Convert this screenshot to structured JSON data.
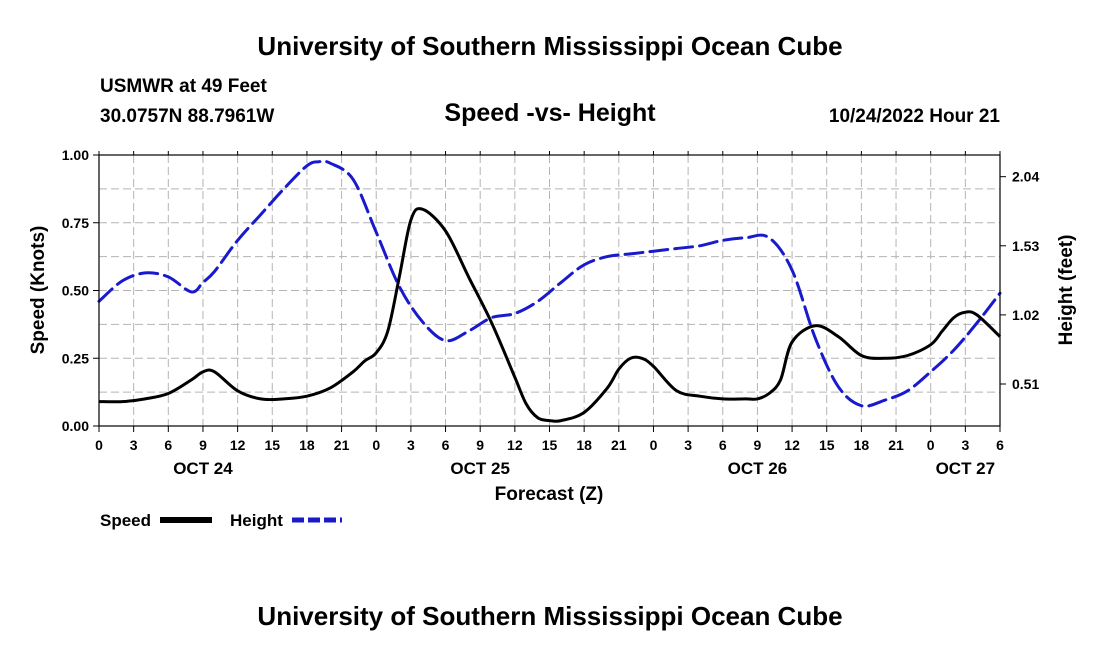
{
  "header": {
    "title": "University of Southern Mississippi Ocean Cube",
    "station": "USMWR at 49 Feet",
    "coords": "30.0757N  88.7961W",
    "datetime": "10/24/2022 Hour 21",
    "footer_title": "University of Southern Mississippi Ocean Cube"
  },
  "colors": {
    "speed": "#000000",
    "height": "#1a1acd",
    "grid": "#b4b4b4"
  },
  "chart_data": {
    "type": "line",
    "title": "Speed -vs- Height",
    "xlabel": "Forecast (Z)",
    "ylabel": "Speed (Knots)",
    "y2label": "Height (feet)",
    "x_unit": "hours from 00Z Oct 24",
    "xlim": [
      0,
      78
    ],
    "ylim": [
      0,
      1.0
    ],
    "y2lim": [
      0.2,
      2.2
    ],
    "x_tick_labels": [
      "0",
      "3",
      "6",
      "9",
      "12",
      "15",
      "18",
      "21",
      "0",
      "3",
      "6",
      "9",
      "12",
      "15",
      "18",
      "21",
      "0",
      "3",
      "6",
      "9",
      "12",
      "15",
      "18",
      "21",
      "0",
      "3",
      "6"
    ],
    "x_day_labels": [
      {
        "label": "OCT 24",
        "x": 9
      },
      {
        "label": "OCT 25",
        "x": 33
      },
      {
        "label": "OCT 26",
        "x": 57
      },
      {
        "label": "OCT 27",
        "x": 75
      }
    ],
    "y_ticks": [
      "0.00",
      "0.25",
      "0.50",
      "0.75",
      "1.00"
    ],
    "y2_ticks": [
      "0.51",
      "1.02",
      "1.53",
      "2.04"
    ],
    "legend": [
      {
        "label": "Speed",
        "style": "solid"
      },
      {
        "label": "Height",
        "style": "dashed"
      }
    ],
    "series": [
      {
        "name": "Speed",
        "axis": "left",
        "x": [
          0,
          2,
          4,
          6,
          8,
          9,
          10,
          12,
          14,
          16,
          18,
          20,
          22,
          23,
          24,
          25,
          26,
          27,
          28,
          30,
          32,
          34,
          36,
          37,
          38,
          39,
          40,
          42,
          44,
          45,
          46,
          47,
          48,
          50,
          52,
          54,
          56,
          57,
          58,
          59,
          60,
          62,
          64,
          66,
          68,
          70,
          72,
          73,
          74,
          75,
          76,
          78
        ],
        "y": [
          0.09,
          0.09,
          0.1,
          0.12,
          0.17,
          0.2,
          0.2,
          0.13,
          0.1,
          0.1,
          0.11,
          0.14,
          0.2,
          0.24,
          0.27,
          0.35,
          0.55,
          0.76,
          0.8,
          0.72,
          0.55,
          0.38,
          0.18,
          0.08,
          0.03,
          0.02,
          0.02,
          0.05,
          0.14,
          0.21,
          0.25,
          0.25,
          0.22,
          0.13,
          0.11,
          0.1,
          0.1,
          0.1,
          0.12,
          0.17,
          0.31,
          0.37,
          0.33,
          0.26,
          0.25,
          0.26,
          0.3,
          0.35,
          0.4,
          0.42,
          0.41,
          0.33
        ]
      },
      {
        "name": "Height",
        "axis": "right",
        "x": [
          0,
          2,
          4,
          6,
          8,
          9,
          10,
          12,
          14,
          16,
          18,
          19,
          20,
          22,
          24,
          26,
          28,
          30,
          32,
          34,
          36,
          38,
          40,
          42,
          44,
          46,
          48,
          50,
          52,
          54,
          56,
          58,
          60,
          62,
          64,
          66,
          68,
          70,
          72,
          74,
          76,
          78
        ],
        "y": [
          1.12,
          1.27,
          1.33,
          1.3,
          1.19,
          1.26,
          1.34,
          1.57,
          1.76,
          1.95,
          2.12,
          2.15,
          2.14,
          2.02,
          1.63,
          1.23,
          0.97,
          0.83,
          0.9,
          1.0,
          1.03,
          1.12,
          1.26,
          1.39,
          1.45,
          1.47,
          1.49,
          1.51,
          1.53,
          1.57,
          1.59,
          1.59,
          1.35,
          0.85,
          0.49,
          0.35,
          0.39,
          0.46,
          0.6,
          0.76,
          0.96,
          1.18
        ]
      }
    ]
  }
}
